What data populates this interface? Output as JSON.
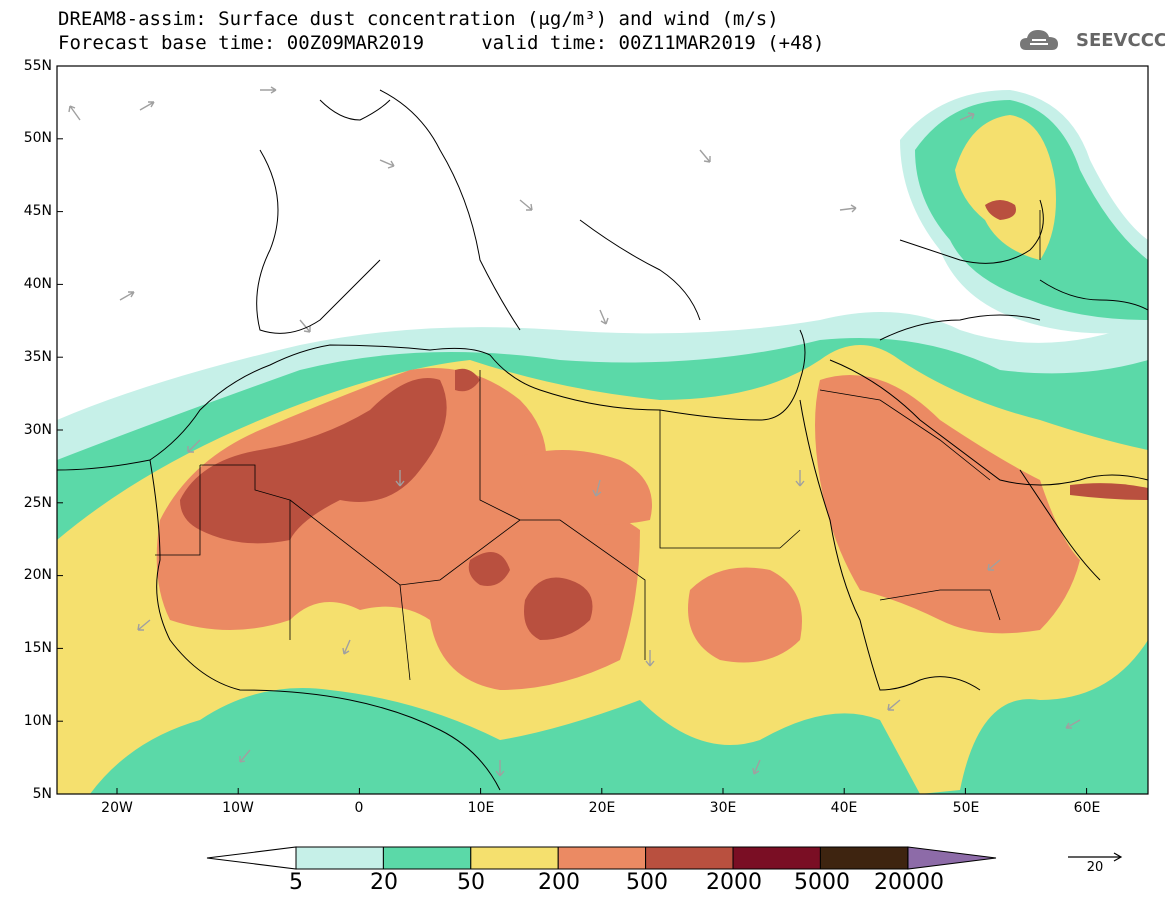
{
  "header": {
    "line1": "DREAM8-assim: Surface dust concentration (μg/m³) and wind (m/s)",
    "line2": "Forecast base time: 00Z09MAR2019     valid time: 00Z11MAR2019 (+48)"
  },
  "logo": {
    "text": "SEEVCCC",
    "icon": "cloud-icon"
  },
  "map": {
    "lat_labels": [
      "55N",
      "50N",
      "45N",
      "40N",
      "35N",
      "30N",
      "25N",
      "20N",
      "15N",
      "10N",
      "5N"
    ],
    "lon_labels": [
      "20W",
      "10W",
      "0",
      "10E",
      "20E",
      "30E",
      "40E",
      "50E",
      "60E"
    ],
    "lat_range": [
      5,
      55
    ],
    "lon_range": [
      -25,
      65
    ]
  },
  "colorbar": {
    "labels": [
      "5",
      "20",
      "50",
      "200",
      "500",
      "2000",
      "5000",
      "20000"
    ],
    "colors": [
      "#c6f0e8",
      "#5bd9a8",
      "#f5e06e",
      "#eb8a63",
      "#b9503f",
      "#7a0e24",
      "#3e2410",
      "#8d6ba8"
    ],
    "under_color": "#ffffff"
  },
  "wind_reference": {
    "label": "20"
  },
  "palette": {
    "arrow": "#a0a0a0",
    "border": "#000000"
  }
}
